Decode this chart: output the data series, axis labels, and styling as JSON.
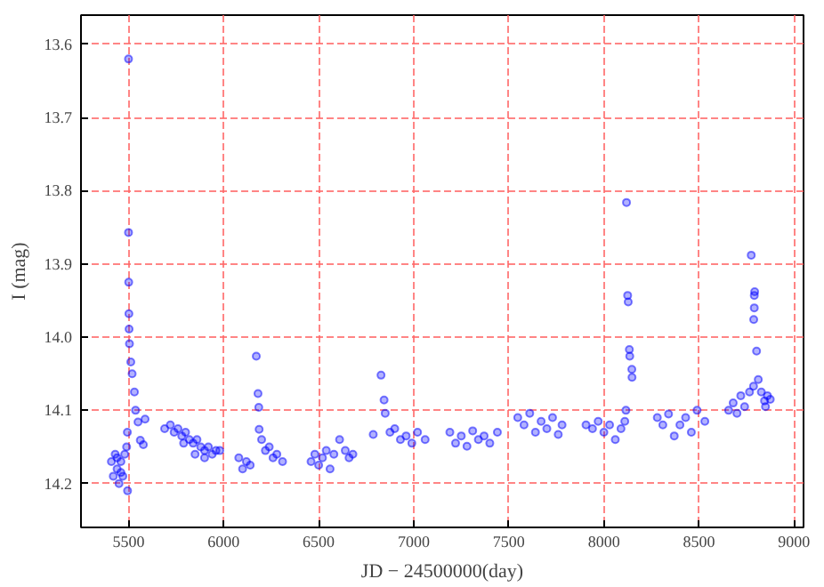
{
  "chart_data": {
    "type": "scatter",
    "xlabel": "JD − 24500000(day)",
    "ylabel": "I (mag)",
    "xlim": [
      5250,
      9050
    ],
    "ylim": [
      14.26,
      13.56
    ],
    "xticks": [
      5500,
      6000,
      6500,
      7000,
      7500,
      8000,
      8500,
      9000
    ],
    "yticks": [
      13.6,
      13.7,
      13.8,
      13.9,
      {
        "value": 14,
        "label": "14.0"
      },
      14.1,
      14.2
    ],
    "grid": true,
    "marker": "circle",
    "series": [
      {
        "color": "#0000ff",
        "x": [
          5410,
          5420,
          5430,
          5440,
          5450,
          5460,
          5470,
          5480,
          5490,
          5495,
          5440,
          5460,
          5500,
          5500,
          5501,
          5502,
          5503,
          5505,
          5512,
          5519,
          5531,
          5537,
          5550,
          5562,
          5578,
          5587,
          5494,
          5690,
          5720,
          5740,
          5760,
          5780,
          5800,
          5820,
          5840,
          5860,
          5880,
          5900,
          5920,
          5940,
          5960,
          5980,
          5850,
          5790,
          5900,
          6080,
          6100,
          6120,
          6140,
          6172,
          6181,
          6185,
          6187,
          6200,
          6220,
          6240,
          6260,
          6280,
          6310,
          6460,
          6480,
          6500,
          6520,
          6540,
          6560,
          6580,
          6610,
          6640,
          6660,
          6680,
          6787,
          6828,
          6844,
          6850,
          6875,
          6900,
          6930,
          6960,
          6990,
          7020,
          7060,
          7190,
          7220,
          7250,
          7280,
          7310,
          7340,
          7370,
          7400,
          7440,
          7547,
          7580,
          7610,
          7640,
          7670,
          7700,
          7730,
          7760,
          7780,
          7906,
          7940,
          7970,
          8000,
          8030,
          8060,
          8090,
          8110,
          8116,
          8119,
          8125,
          8128,
          8134,
          8136,
          8147,
          8148,
          8281,
          8310,
          8340,
          8370,
          8400,
          8430,
          8460,
          8490,
          8531,
          8656,
          8680,
          8700,
          8720,
          8740,
          8766,
          8775,
          8791,
          8793,
          8791,
          8788,
          8803,
          8812,
          8787,
          8828,
          8845,
          8860,
          8875,
          8850
        ],
        "values": [
          14.17,
          14.19,
          14.16,
          14.18,
          14.2,
          14.17,
          14.19,
          14.16,
          14.15,
          14.21,
          14.165,
          14.185,
          13.62,
          13.857,
          13.925,
          13.968,
          13.989,
          14.009,
          14.034,
          14.05,
          14.075,
          14.1,
          14.116,
          14.141,
          14.147,
          14.112,
          14.13,
          14.125,
          14.12,
          14.13,
          14.125,
          14.135,
          14.13,
          14.14,
          14.145,
          14.14,
          14.15,
          14.155,
          14.15,
          14.16,
          14.155,
          14.155,
          14.16,
          14.145,
          14.165,
          14.165,
          14.18,
          14.17,
          14.175,
          14.026,
          14.077,
          14.096,
          14.126,
          14.14,
          14.155,
          14.15,
          14.165,
          14.16,
          14.17,
          14.17,
          14.16,
          14.175,
          14.165,
          14.155,
          14.18,
          14.16,
          14.14,
          14.155,
          14.165,
          14.16,
          14.133,
          14.052,
          14.086,
          14.104,
          14.13,
          14.125,
          14.14,
          14.135,
          14.145,
          14.13,
          14.14,
          14.13,
          14.145,
          14.135,
          14.149,
          14.128,
          14.14,
          14.135,
          14.145,
          14.13,
          14.11,
          14.12,
          14.104,
          14.13,
          14.115,
          14.125,
          14.11,
          14.133,
          14.12,
          14.12,
          14.125,
          14.115,
          14.13,
          14.12,
          14.14,
          14.125,
          14.115,
          14.1,
          13.816,
          13.943,
          13.952,
          14.017,
          14.026,
          14.044,
          14.055,
          14.11,
          14.12,
          14.105,
          14.135,
          14.12,
          14.11,
          14.13,
          14.1,
          14.115,
          14.1,
          14.09,
          14.104,
          14.08,
          14.095,
          14.075,
          13.888,
          13.943,
          13.938,
          13.96,
          13.976,
          14.019,
          14.058,
          14.067,
          14.075,
          14.087,
          14.08,
          14.085,
          14.095
        ]
      }
    ]
  }
}
